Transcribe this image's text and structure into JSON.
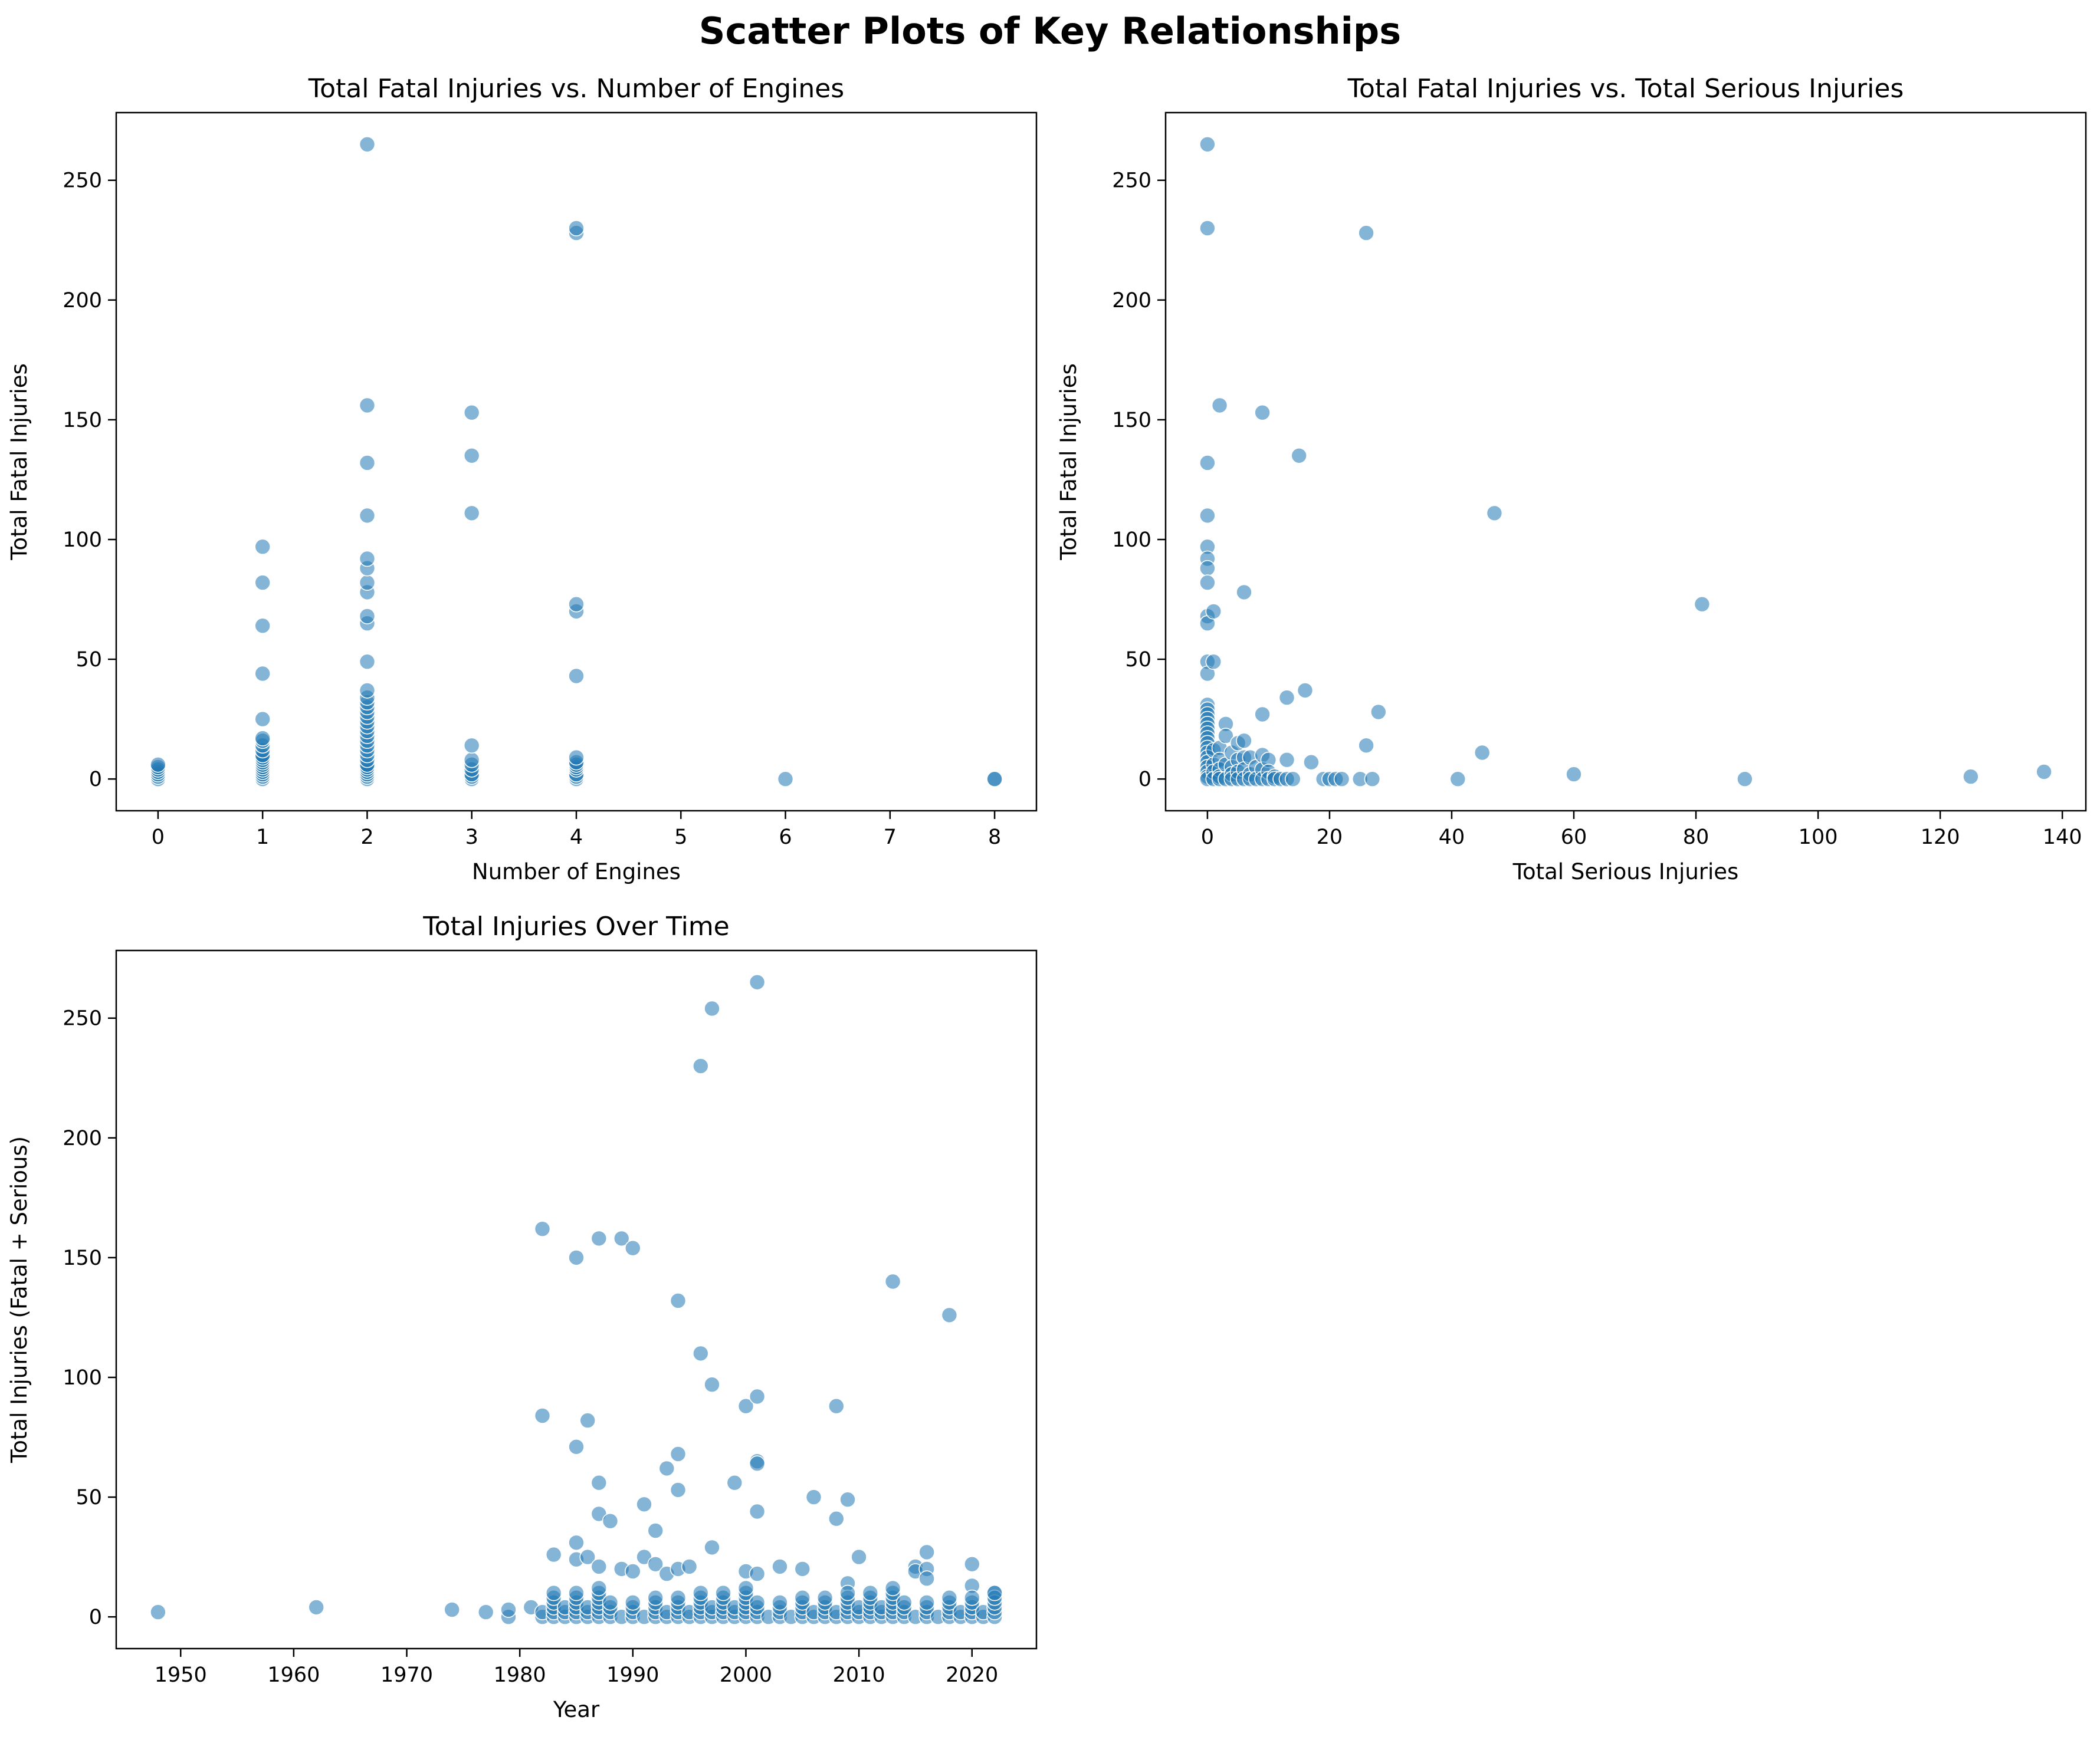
{
  "figure": {
    "suptitle": "Scatter Plots of Key Relationships",
    "marker_color": "#1f77b4"
  },
  "chart_data": [
    {
      "type": "scatter",
      "title": "Total Fatal Injuries vs. Number of Engines",
      "xlabel": "Number of Engines",
      "ylabel": "Total Fatal Injuries",
      "xlim": [
        -0.4,
        8.4
      ],
      "ylim": [
        -13.25,
        278.25
      ],
      "xticks": [
        0,
        1,
        2,
        3,
        4,
        5,
        6,
        7,
        8
      ],
      "yticks": [
        0,
        50,
        100,
        150,
        200,
        250
      ],
      "grid": false,
      "points": [
        [
          0,
          0
        ],
        [
          0,
          1
        ],
        [
          0,
          2
        ],
        [
          0,
          3
        ],
        [
          0,
          4
        ],
        [
          0,
          5
        ],
        [
          0,
          6
        ],
        [
          1,
          0
        ],
        [
          1,
          1
        ],
        [
          1,
          2
        ],
        [
          1,
          3
        ],
        [
          1,
          4
        ],
        [
          1,
          5
        ],
        [
          1,
          6
        ],
        [
          1,
          7
        ],
        [
          1,
          8
        ],
        [
          1,
          9
        ],
        [
          1,
          10
        ],
        [
          1,
          12
        ],
        [
          1,
          14
        ],
        [
          1,
          16
        ],
        [
          1,
          17
        ],
        [
          1,
          25
        ],
        [
          1,
          44
        ],
        [
          1,
          64
        ],
        [
          1,
          82
        ],
        [
          1,
          97
        ],
        [
          2,
          0
        ],
        [
          2,
          1
        ],
        [
          2,
          2
        ],
        [
          2,
          3
        ],
        [
          2,
          4
        ],
        [
          2,
          5
        ],
        [
          2,
          6
        ],
        [
          2,
          8
        ],
        [
          2,
          10
        ],
        [
          2,
          12
        ],
        [
          2,
          14
        ],
        [
          2,
          16
        ],
        [
          2,
          18
        ],
        [
          2,
          20
        ],
        [
          2,
          22
        ],
        [
          2,
          24
        ],
        [
          2,
          26
        ],
        [
          2,
          28
        ],
        [
          2,
          30
        ],
        [
          2,
          32
        ],
        [
          2,
          34
        ],
        [
          2,
          37
        ],
        [
          2,
          49
        ],
        [
          2,
          65
        ],
        [
          2,
          68
        ],
        [
          2,
          78
        ],
        [
          2,
          82
        ],
        [
          2,
          88
        ],
        [
          2,
          92
        ],
        [
          2,
          110
        ],
        [
          2,
          132
        ],
        [
          2,
          156
        ],
        [
          2,
          265
        ],
        [
          3,
          0
        ],
        [
          3,
          1
        ],
        [
          3,
          2
        ],
        [
          3,
          4
        ],
        [
          3,
          6
        ],
        [
          3,
          8
        ],
        [
          3,
          14
        ],
        [
          3,
          111
        ],
        [
          3,
          135
        ],
        [
          3,
          153
        ],
        [
          4,
          0
        ],
        [
          4,
          1
        ],
        [
          4,
          2
        ],
        [
          4,
          4
        ],
        [
          4,
          5
        ],
        [
          4,
          6
        ],
        [
          4,
          7
        ],
        [
          4,
          9
        ],
        [
          4,
          43
        ],
        [
          4,
          70
        ],
        [
          4,
          73
        ],
        [
          4,
          228
        ],
        [
          4,
          230
        ],
        [
          6,
          0
        ],
        [
          8,
          0
        ],
        [
          8,
          0
        ]
      ]
    },
    {
      "type": "scatter",
      "title": "Total Fatal Injuries vs. Total Serious Injuries",
      "xlabel": "Total Serious Injuries",
      "ylabel": "Total Fatal Injuries",
      "xlim": [
        -6.85,
        143.85
      ],
      "ylim": [
        -13.25,
        278.25
      ],
      "xticks": [
        0,
        20,
        40,
        60,
        80,
        100,
        120,
        140
      ],
      "yticks": [
        0,
        50,
        100,
        150,
        200,
        250
      ],
      "grid": false,
      "points": [
        [
          0,
          265
        ],
        [
          0,
          230
        ],
        [
          0,
          132
        ],
        [
          0,
          110
        ],
        [
          0,
          97
        ],
        [
          0,
          92
        ],
        [
          0,
          88
        ],
        [
          0,
          82
        ],
        [
          0,
          68
        ],
        [
          0,
          65
        ],
        [
          0,
          49
        ],
        [
          0,
          44
        ],
        [
          0,
          31
        ],
        [
          0,
          29
        ],
        [
          0,
          27
        ],
        [
          0,
          25
        ],
        [
          0,
          23
        ],
        [
          0,
          21
        ],
        [
          0,
          19
        ],
        [
          0,
          17
        ],
        [
          0,
          15
        ],
        [
          0,
          13
        ],
        [
          0,
          11
        ],
        [
          0,
          9
        ],
        [
          0,
          7
        ],
        [
          0,
          5
        ],
        [
          0,
          3
        ],
        [
          0,
          1
        ],
        [
          0,
          0
        ],
        [
          1,
          70
        ],
        [
          1,
          49
        ],
        [
          1,
          12
        ],
        [
          1,
          6
        ],
        [
          1,
          3
        ],
        [
          1,
          0
        ],
        [
          2,
          156
        ],
        [
          2,
          13
        ],
        [
          2,
          8
        ],
        [
          2,
          4
        ],
        [
          2,
          1
        ],
        [
          2,
          0
        ],
        [
          3,
          23
        ],
        [
          3,
          18
        ],
        [
          3,
          6
        ],
        [
          3,
          0
        ],
        [
          4,
          11
        ],
        [
          4,
          5
        ],
        [
          4,
          2
        ],
        [
          4,
          0
        ],
        [
          5,
          15
        ],
        [
          5,
          8
        ],
        [
          5,
          3
        ],
        [
          5,
          0
        ],
        [
          6,
          78
        ],
        [
          6,
          16
        ],
        [
          6,
          9
        ],
        [
          6,
          4
        ],
        [
          6,
          0
        ],
        [
          7,
          9
        ],
        [
          7,
          2
        ],
        [
          7,
          0
        ],
        [
          8,
          5
        ],
        [
          8,
          0
        ],
        [
          9,
          153
        ],
        [
          9,
          27
        ],
        [
          9,
          10
        ],
        [
          9,
          4
        ],
        [
          9,
          0
        ],
        [
          10,
          8
        ],
        [
          10,
          3
        ],
        [
          10,
          0
        ],
        [
          11,
          1
        ],
        [
          11,
          0
        ],
        [
          12,
          0
        ],
        [
          13,
          34
        ],
        [
          13,
          8
        ],
        [
          13,
          0
        ],
        [
          14,
          0
        ],
        [
          15,
          135
        ],
        [
          16,
          37
        ],
        [
          17,
          7
        ],
        [
          19,
          0
        ],
        [
          20,
          0
        ],
        [
          21,
          0
        ],
        [
          22,
          0
        ],
        [
          25,
          0
        ],
        [
          26,
          228
        ],
        [
          26,
          14
        ],
        [
          27,
          0
        ],
        [
          28,
          28
        ],
        [
          41,
          0
        ],
        [
          45,
          11
        ],
        [
          47,
          111
        ],
        [
          60,
          2
        ],
        [
          81,
          73
        ],
        [
          88,
          0
        ],
        [
          125,
          1
        ],
        [
          137,
          3
        ]
      ]
    },
    {
      "type": "scatter",
      "title": "Total Injuries Over Time",
      "xlabel": "Year",
      "ylabel": "Total Injuries (Fatal + Serious)",
      "xlim": [
        1944.3,
        2025.7
      ],
      "ylim": [
        -13.25,
        278.25
      ],
      "xticks": [
        1950,
        1960,
        1970,
        1980,
        1990,
        2000,
        2010,
        2020
      ],
      "yticks": [
        0,
        50,
        100,
        150,
        200,
        250
      ],
      "grid": false,
      "points": [
        [
          1948,
          2
        ],
        [
          1962,
          4
        ],
        [
          1974,
          3
        ],
        [
          1977,
          2
        ],
        [
          1979,
          0
        ],
        [
          1979,
          3
        ],
        [
          1981,
          4
        ],
        [
          1982,
          162
        ],
        [
          1982,
          84
        ],
        [
          1983,
          26
        ],
        [
          1985,
          150
        ],
        [
          1985,
          71
        ],
        [
          1985,
          31
        ],
        [
          1985,
          24
        ],
        [
          1986,
          82
        ],
        [
          1986,
          25
        ],
        [
          1987,
          158
        ],
        [
          1987,
          56
        ],
        [
          1987,
          43
        ],
        [
          1987,
          21
        ],
        [
          1988,
          40
        ],
        [
          1989,
          158
        ],
        [
          1989,
          20
        ],
        [
          1990,
          154
        ],
        [
          1990,
          19
        ],
        [
          1991,
          47
        ],
        [
          1991,
          25
        ],
        [
          1992,
          36
        ],
        [
          1992,
          22
        ],
        [
          1993,
          62
        ],
        [
          1993,
          18
        ],
        [
          1994,
          132
        ],
        [
          1994,
          68
        ],
        [
          1994,
          53
        ],
        [
          1994,
          20
        ],
        [
          1995,
          21
        ],
        [
          1996,
          230
        ],
        [
          1996,
          110
        ],
        [
          1997,
          254
        ],
        [
          1997,
          97
        ],
        [
          1997,
          29
        ],
        [
          1999,
          56
        ],
        [
          2000,
          88
        ],
        [
          2000,
          19
        ],
        [
          2001,
          265
        ],
        [
          2001,
          92
        ],
        [
          2001,
          65
        ],
        [
          2001,
          64
        ],
        [
          2001,
          44
        ],
        [
          2001,
          18
        ],
        [
          2003,
          21
        ],
        [
          2005,
          20
        ],
        [
          2006,
          50
        ],
        [
          2008,
          88
        ],
        [
          2008,
          41
        ],
        [
          2009,
          49
        ],
        [
          2009,
          14
        ],
        [
          2010,
          25
        ],
        [
          2013,
          140
        ],
        [
          2015,
          21
        ],
        [
          2015,
          19
        ],
        [
          2016,
          27
        ],
        [
          2016,
          20
        ],
        [
          2016,
          16
        ],
        [
          2018,
          126
        ],
        [
          2020,
          22
        ],
        [
          2020,
          13
        ],
        [
          2022,
          10
        ]
      ],
      "dense_band": {
        "years": [
          1982,
          2022
        ],
        "min": 0,
        "max": 12
      }
    }
  ]
}
